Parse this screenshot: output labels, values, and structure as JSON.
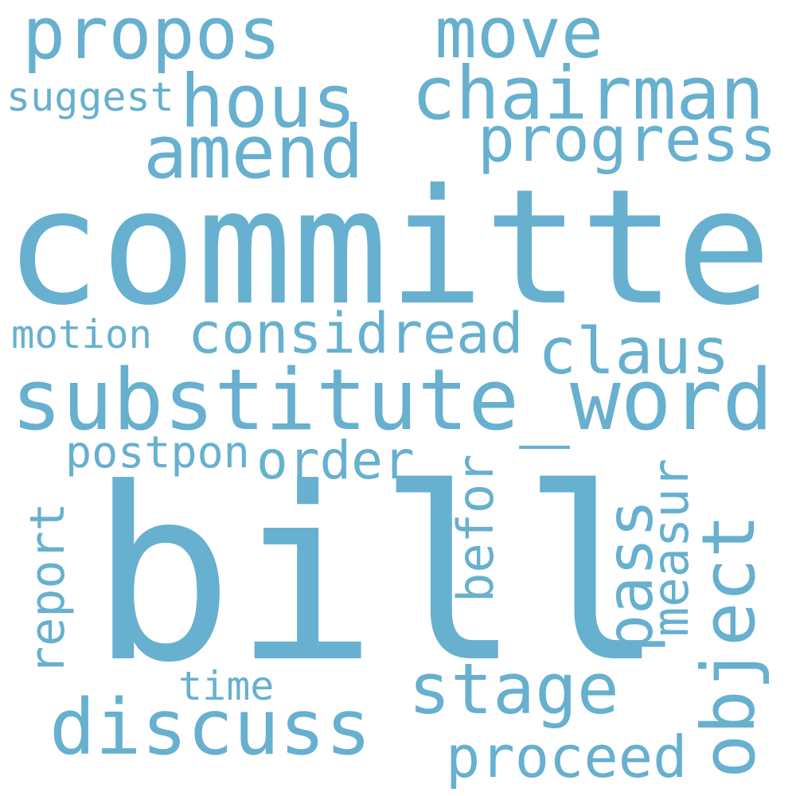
{
  "word_cloud": {
    "color": "#67b0cf",
    "background": "#ffffff",
    "words": {
      "committe": "committe",
      "bill": "bill",
      "substitute_word": "substitute_word",
      "propos": "propos",
      "move": "move",
      "chairman": "chairman",
      "hous": "hous",
      "suggest": "suggest",
      "amend": "amend",
      "progress": "progress",
      "motion": "motion",
      "considread": "considread",
      "claus": "claus",
      "postpon": "postpon",
      "order": "order",
      "report": "report",
      "befor": "befor",
      "measur": "measur",
      "pass": "pass",
      "object": "object",
      "stage": "stage",
      "time": "time",
      "discuss": "discuss",
      "proceed": "proceed"
    }
  }
}
